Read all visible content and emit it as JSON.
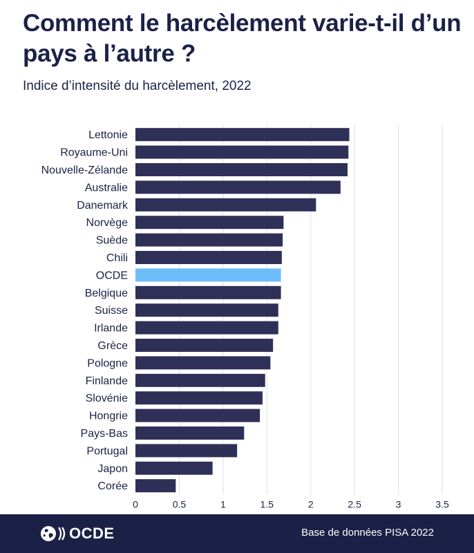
{
  "title": "Comment le harcèlement varie-t-il d’un pays à l’autre ?",
  "subtitle": "Indice d’intensité du harcèlement, 2022",
  "footer": {
    "logo_text": "OCDE",
    "source": "Base de données PISA 2022"
  },
  "colors": {
    "bar": "#2e3058",
    "highlight": "#6cbdfa",
    "grid": "#dcdee6",
    "text": "#1b2146",
    "footer_bg": "#1b2146"
  },
  "chart_data": {
    "type": "bar",
    "orientation": "horizontal",
    "categories": [
      "Lettonie",
      "Royaume-Uni",
      "Nouvelle-Zélande",
      "Australie",
      "Danemark",
      "Norvège",
      "Suède",
      "Chili",
      "OCDE",
      "Belgique",
      "Suisse",
      "Irlande",
      "Grèce",
      "Pologne",
      "Finlande",
      "Slovénie",
      "Hongrie",
      "Pays-Bas",
      "Portugal",
      "Japon",
      "Corée"
    ],
    "values": [
      2.44,
      2.43,
      2.42,
      2.34,
      2.06,
      1.69,
      1.68,
      1.67,
      1.66,
      1.66,
      1.63,
      1.63,
      1.57,
      1.54,
      1.48,
      1.45,
      1.42,
      1.24,
      1.16,
      0.88,
      0.46
    ],
    "highlight": "OCDE",
    "xlim": [
      0,
      3.5
    ],
    "xticks": [
      0,
      0.5,
      1,
      1.5,
      2,
      2.5,
      3,
      3.5
    ],
    "xtick_labels": [
      "0",
      "0.5",
      "1",
      "1.5",
      "2",
      "2.5",
      "3",
      "3.5"
    ],
    "title": "Comment le harcèlement varie-t-il d’un pays à l’autre ?",
    "subtitle": "Indice d’intensité du harcèlement, 2022",
    "xlabel": "",
    "ylabel": "",
    "grid": true
  }
}
